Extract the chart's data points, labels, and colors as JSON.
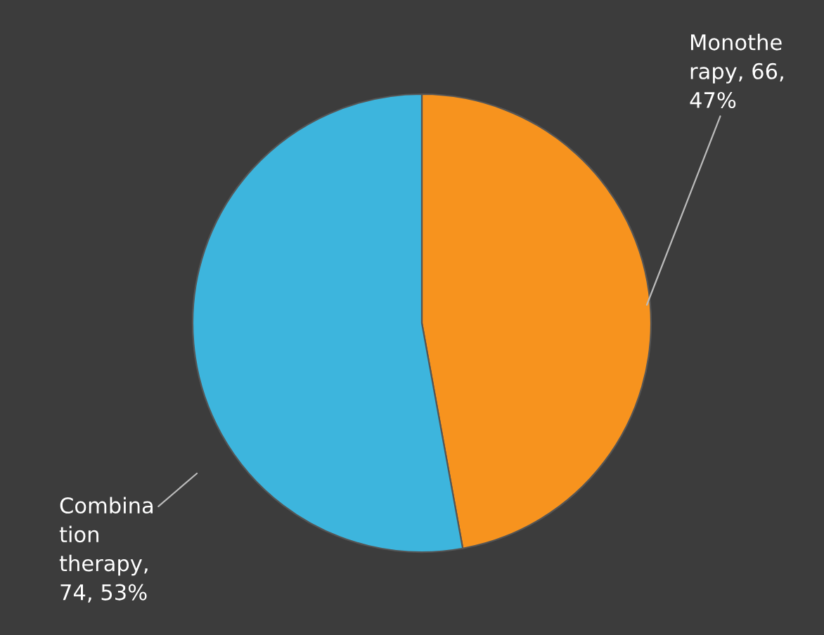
{
  "chart_data": {
    "type": "pie",
    "categories": [
      "Monothe\nrapy",
      "Combina\ntion\ntherapy"
    ],
    "values": [
      66,
      74
    ],
    "value_labels": [
      ", 66,\n47%",
      ",\n74, 53%"
    ],
    "colors": [
      "#f7931e",
      "#3db5dd"
    ]
  }
}
